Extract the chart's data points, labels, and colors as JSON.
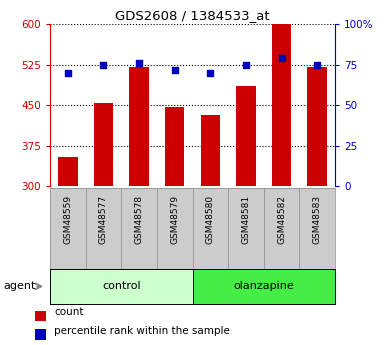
{
  "title": "GDS2608 / 1384533_at",
  "samples": [
    "GSM48559",
    "GSM48577",
    "GSM48578",
    "GSM48579",
    "GSM48580",
    "GSM48581",
    "GSM48582",
    "GSM48583"
  ],
  "counts": [
    355,
    455,
    520,
    447,
    432,
    485,
    600,
    520
  ],
  "percentiles": [
    70,
    75,
    76,
    72,
    70,
    75,
    79,
    75
  ],
  "bar_color": "#cc0000",
  "dot_color": "#0000bb",
  "ylim_left": [
    300,
    600
  ],
  "ylim_right": [
    0,
    100
  ],
  "yticks_left": [
    300,
    375,
    450,
    525,
    600
  ],
  "yticks_right": [
    0,
    25,
    50,
    75,
    100
  ],
  "ytick_labels_right": [
    "0",
    "25",
    "50",
    "75",
    "100%"
  ],
  "control_label": "control",
  "olanzapine_label": "olanzapine",
  "control_color": "#ccffcc",
  "olanzapine_color": "#44ee44",
  "tick_bg_color": "#cccccc",
  "group_row_label": "agent",
  "legend_count_label": "count",
  "legend_percentile_label": "percentile rank within the sample"
}
